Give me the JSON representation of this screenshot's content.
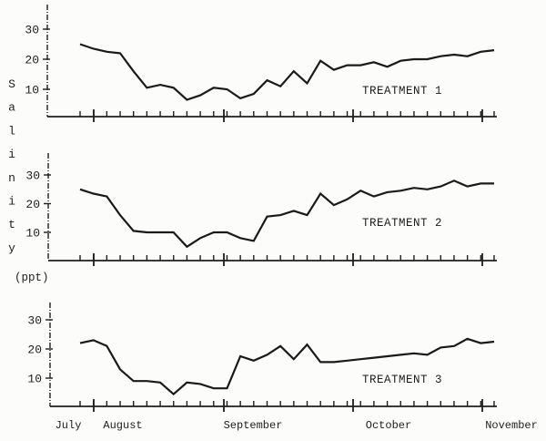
{
  "colors": {
    "ink": "#1e1e1e",
    "paper": "#fcfcfa"
  },
  "axes": {
    "ylabel_vertical": "Salinity",
    "ylabel_unit": "(ppt)",
    "months": [
      "July",
      "August",
      "September",
      "October",
      "November"
    ],
    "yticks": [
      10,
      20,
      30
    ]
  },
  "chart_data": [
    {
      "type": "line",
      "series_label": "TREATMENT 1",
      "ylabel": "Salinity (ppt)",
      "x_months": [
        "July",
        "August",
        "September",
        "October",
        "November"
      ],
      "yticks": [
        10,
        20,
        30
      ],
      "ylim": [
        0,
        37
      ],
      "grid": false,
      "values": [
        25,
        23.5,
        22.5,
        22,
        16,
        10.5,
        11.5,
        10.5,
        6.5,
        8,
        10.5,
        10,
        7,
        8.5,
        13,
        11,
        16,
        12,
        19.5,
        16.5,
        18,
        18,
        19,
        17.5,
        19.5,
        20,
        20,
        21,
        21.5,
        21,
        22.5,
        23
      ]
    },
    {
      "type": "line",
      "series_label": "TREATMENT 2",
      "ylabel": "Salinity (ppt)",
      "x_months": [
        "July",
        "August",
        "September",
        "October",
        "November"
      ],
      "yticks": [
        10,
        20,
        30
      ],
      "ylim": [
        0,
        37
      ],
      "grid": false,
      "values": [
        25,
        23.5,
        22.5,
        16,
        10.5,
        10,
        10,
        10,
        5,
        8,
        10,
        10,
        8,
        7,
        15.5,
        16,
        17.5,
        16,
        23.5,
        19.5,
        21.5,
        24.5,
        22.5,
        24,
        24.5,
        25.5,
        25,
        26,
        28,
        26,
        27,
        27
      ]
    },
    {
      "type": "line",
      "series_label": "TREATMENT 3",
      "ylabel": "Salinity (ppt)",
      "x_months": [
        "July",
        "August",
        "September",
        "October",
        "November"
      ],
      "yticks": [
        10,
        20,
        30
      ],
      "ylim": [
        0,
        37
      ],
      "grid": false,
      "values": [
        22,
        23,
        21,
        13,
        9,
        9,
        8.5,
        4.5,
        8.5,
        8,
        6.5,
        6.5,
        17.5,
        16,
        18,
        21,
        16.5,
        21.5,
        15.5,
        15.5,
        16,
        16.5,
        17,
        17.5,
        18,
        18.5,
        18,
        20.5,
        21,
        23.5,
        22,
        22.5
      ]
    }
  ]
}
